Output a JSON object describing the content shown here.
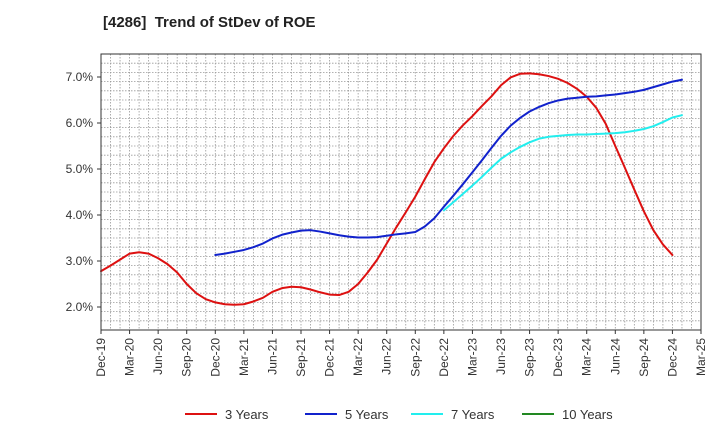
{
  "chart_data": {
    "type": "line",
    "title": "[4286]  Trend of StDev of ROE",
    "xlabel": "",
    "ylabel": "",
    "x_ticks": [
      "Dec-19",
      "Mar-20",
      "Jun-20",
      "Sep-20",
      "Dec-20",
      "Mar-21",
      "Jun-21",
      "Sep-21",
      "Dec-21",
      "Mar-22",
      "Jun-22",
      "Sep-22",
      "Dec-22",
      "Mar-23",
      "Jun-23",
      "Sep-23",
      "Dec-23",
      "Mar-24",
      "Jun-24",
      "Sep-24",
      "Dec-24",
      "Mar-25"
    ],
    "y_ticks": [
      "2.0%",
      "3.0%",
      "4.0%",
      "5.0%",
      "6.0%",
      "7.0%"
    ],
    "ylim": [
      1.5,
      7.5
    ],
    "y_unit": "%",
    "grid": true,
    "legend_position": "bottom",
    "series": [
      {
        "name": "3 Years",
        "color": "#dd1111",
        "points": [
          [
            "Dec-19",
            2.78
          ],
          [
            "Jan-20",
            2.9
          ],
          [
            "Feb-20",
            3.03
          ],
          [
            "Mar-20",
            3.16
          ],
          [
            "Apr-20",
            3.19
          ],
          [
            "May-20",
            3.16
          ],
          [
            "Jun-20",
            3.06
          ],
          [
            "Jul-20",
            2.93
          ],
          [
            "Aug-20",
            2.75
          ],
          [
            "Sep-20",
            2.5
          ],
          [
            "Oct-20",
            2.3
          ],
          [
            "Nov-20",
            2.17
          ],
          [
            "Dec-20",
            2.1
          ],
          [
            "Jan-21",
            2.06
          ],
          [
            "Feb-21",
            2.05
          ],
          [
            "Mar-21",
            2.06
          ],
          [
            "Apr-21",
            2.12
          ],
          [
            "May-21",
            2.2
          ],
          [
            "Jun-21",
            2.33
          ],
          [
            "Jul-21",
            2.41
          ],
          [
            "Aug-21",
            2.44
          ],
          [
            "Sep-21",
            2.43
          ],
          [
            "Oct-21",
            2.38
          ],
          [
            "Nov-21",
            2.32
          ],
          [
            "Dec-21",
            2.27
          ],
          [
            "Jan-22",
            2.26
          ],
          [
            "Feb-22",
            2.33
          ],
          [
            "Mar-22",
            2.5
          ],
          [
            "Apr-22",
            2.75
          ],
          [
            "May-22",
            3.03
          ],
          [
            "Jun-22",
            3.38
          ],
          [
            "Jul-22",
            3.73
          ],
          [
            "Aug-22",
            4.06
          ],
          [
            "Sep-22",
            4.4
          ],
          [
            "Oct-22",
            4.78
          ],
          [
            "Nov-22",
            5.15
          ],
          [
            "Dec-22",
            5.45
          ],
          [
            "Jan-23",
            5.72
          ],
          [
            "Feb-23",
            5.95
          ],
          [
            "Mar-23",
            6.15
          ],
          [
            "Apr-23",
            6.37
          ],
          [
            "May-23",
            6.58
          ],
          [
            "Jun-23",
            6.82
          ],
          [
            "Jul-23",
            6.99
          ],
          [
            "Aug-23",
            7.07
          ],
          [
            "Sep-23",
            7.08
          ],
          [
            "Oct-23",
            7.06
          ],
          [
            "Nov-23",
            7.02
          ],
          [
            "Dec-23",
            6.96
          ],
          [
            "Jan-24",
            6.87
          ],
          [
            "Feb-24",
            6.74
          ],
          [
            "Mar-24",
            6.57
          ],
          [
            "Apr-24",
            6.33
          ],
          [
            "May-24",
            5.98
          ],
          [
            "Jun-24",
            5.5
          ],
          [
            "Jul-24",
            5.03
          ],
          [
            "Aug-24",
            4.55
          ],
          [
            "Sep-24",
            4.08
          ],
          [
            "Oct-24",
            3.67
          ],
          [
            "Nov-24",
            3.36
          ],
          [
            "Dec-24",
            3.13
          ]
        ]
      },
      {
        "name": "5 Years",
        "color": "#1122cc",
        "points": [
          [
            "Dec-20",
            3.13
          ],
          [
            "Jan-21",
            3.16
          ],
          [
            "Feb-21",
            3.2
          ],
          [
            "Mar-21",
            3.24
          ],
          [
            "Apr-21",
            3.3
          ],
          [
            "May-21",
            3.38
          ],
          [
            "Jun-21",
            3.49
          ],
          [
            "Jul-21",
            3.57
          ],
          [
            "Aug-21",
            3.62
          ],
          [
            "Sep-21",
            3.66
          ],
          [
            "Oct-21",
            3.67
          ],
          [
            "Nov-21",
            3.64
          ],
          [
            "Dec-21",
            3.6
          ],
          [
            "Jan-22",
            3.56
          ],
          [
            "Feb-22",
            3.53
          ],
          [
            "Mar-22",
            3.51
          ],
          [
            "Apr-22",
            3.51
          ],
          [
            "May-22",
            3.52
          ],
          [
            "Jun-22",
            3.55
          ],
          [
            "Jul-22",
            3.58
          ],
          [
            "Aug-22",
            3.6
          ],
          [
            "Sep-22",
            3.63
          ],
          [
            "Oct-22",
            3.75
          ],
          [
            "Nov-22",
            3.93
          ],
          [
            "Dec-22",
            4.18
          ],
          [
            "Jan-23",
            4.42
          ],
          [
            "Feb-23",
            4.67
          ],
          [
            "Mar-23",
            4.93
          ],
          [
            "Apr-23",
            5.19
          ],
          [
            "May-23",
            5.46
          ],
          [
            "Jun-23",
            5.72
          ],
          [
            "Jul-23",
            5.94
          ],
          [
            "Aug-23",
            6.11
          ],
          [
            "Sep-23",
            6.25
          ],
          [
            "Oct-23",
            6.35
          ],
          [
            "Nov-23",
            6.43
          ],
          [
            "Dec-23",
            6.49
          ],
          [
            "Jan-24",
            6.53
          ],
          [
            "Feb-24",
            6.55
          ],
          [
            "Mar-24",
            6.57
          ],
          [
            "Apr-24",
            6.58
          ],
          [
            "May-24",
            6.6
          ],
          [
            "Jun-24",
            6.62
          ],
          [
            "Jul-24",
            6.65
          ],
          [
            "Aug-24",
            6.68
          ],
          [
            "Sep-24",
            6.72
          ],
          [
            "Oct-24",
            6.78
          ],
          [
            "Nov-24",
            6.84
          ],
          [
            "Dec-24",
            6.9
          ],
          [
            "Jan-25",
            6.94
          ]
        ]
      },
      {
        "name": "7 Years",
        "color": "#22eeee",
        "points": [
          [
            "Dec-22",
            4.1
          ],
          [
            "Jan-23",
            4.28
          ],
          [
            "Feb-23",
            4.46
          ],
          [
            "Mar-23",
            4.64
          ],
          [
            "Apr-23",
            4.83
          ],
          [
            "May-23",
            5.03
          ],
          [
            "Jun-23",
            5.22
          ],
          [
            "Jul-23",
            5.36
          ],
          [
            "Aug-23",
            5.48
          ],
          [
            "Sep-23",
            5.58
          ],
          [
            "Oct-23",
            5.66
          ],
          [
            "Nov-23",
            5.7
          ],
          [
            "Dec-23",
            5.72
          ],
          [
            "Jan-24",
            5.74
          ],
          [
            "Feb-24",
            5.75
          ],
          [
            "Mar-24",
            5.75
          ],
          [
            "Apr-24",
            5.76
          ],
          [
            "May-24",
            5.77
          ],
          [
            "Jun-24",
            5.78
          ],
          [
            "Jul-24",
            5.8
          ],
          [
            "Aug-24",
            5.83
          ],
          [
            "Sep-24",
            5.87
          ],
          [
            "Oct-24",
            5.93
          ],
          [
            "Nov-24",
            6.02
          ],
          [
            "Dec-24",
            6.12
          ],
          [
            "Jan-25",
            6.17
          ]
        ]
      },
      {
        "name": "10 Years",
        "color": "#228822",
        "points": []
      }
    ]
  }
}
